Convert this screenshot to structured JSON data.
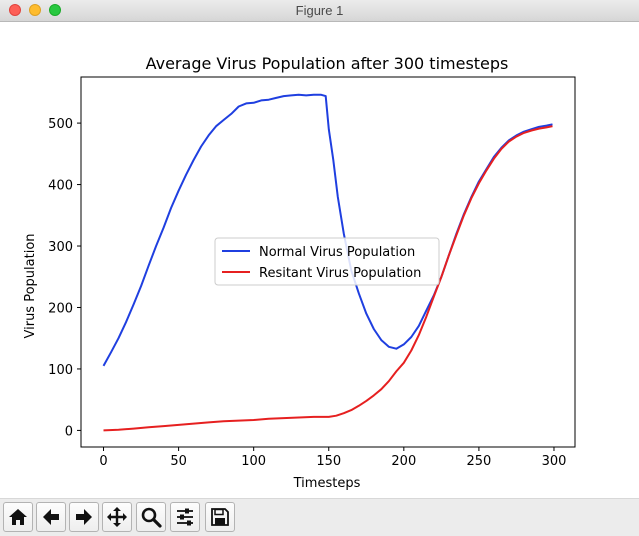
{
  "window": {
    "title": "Figure 1"
  },
  "toolbar": {
    "buttons": [
      {
        "icon": "home-icon"
      },
      {
        "icon": "back-arrow-icon"
      },
      {
        "icon": "forward-arrow-icon"
      },
      {
        "icon": "pan-move-icon"
      },
      {
        "icon": "zoom-magnifier-icon"
      },
      {
        "icon": "subplots-config-icon"
      },
      {
        "icon": "save-floppy-icon"
      }
    ]
  },
  "chart_data": {
    "type": "line",
    "title": "Average Virus Population after 300 timesteps",
    "xlabel": "Timesteps",
    "ylabel": "Virus Population",
    "xlim": [
      -15,
      314
    ],
    "ylim": [
      -27,
      575
    ],
    "xticks": [
      0,
      50,
      100,
      150,
      200,
      250,
      300
    ],
    "yticks": [
      0,
      100,
      200,
      300,
      400,
      500
    ],
    "grid": false,
    "legend": "center",
    "series": [
      {
        "name": "Normal Virus Population",
        "color": "#1f3fe0",
        "x": [
          0,
          5,
          10,
          15,
          20,
          25,
          30,
          35,
          40,
          45,
          50,
          55,
          60,
          65,
          70,
          75,
          80,
          85,
          90,
          95,
          100,
          105,
          110,
          115,
          120,
          125,
          130,
          135,
          140,
          145,
          148,
          150,
          153,
          156,
          160,
          165,
          170,
          175,
          180,
          185,
          190,
          195,
          200,
          205,
          210,
          215,
          220,
          225,
          230,
          235,
          240,
          245,
          250,
          255,
          260,
          265,
          270,
          275,
          280,
          285,
          290,
          295,
          299
        ],
        "y": [
          105,
          127,
          150,
          176,
          205,
          235,
          268,
          300,
          330,
          362,
          390,
          416,
          440,
          462,
          480,
          495,
          505,
          515,
          527,
          532,
          533,
          537,
          538,
          541,
          544,
          545,
          546,
          545,
          546,
          546,
          544,
          490,
          440,
          380,
          320,
          260,
          223,
          190,
          165,
          147,
          136,
          133,
          140,
          152,
          170,
          195,
          220,
          250,
          285,
          320,
          352,
          380,
          405,
          425,
          445,
          460,
          472,
          480,
          486,
          490,
          494,
          496,
          498
        ]
      },
      {
        "name": "Resitant Virus Population",
        "color": "#e62020",
        "x": [
          0,
          10,
          20,
          30,
          40,
          50,
          60,
          70,
          80,
          90,
          100,
          110,
          120,
          130,
          140,
          150,
          155,
          160,
          165,
          170,
          175,
          180,
          185,
          190,
          195,
          200,
          205,
          210,
          215,
          220,
          225,
          230,
          235,
          240,
          245,
          250,
          255,
          260,
          265,
          270,
          275,
          280,
          285,
          290,
          295,
          299
        ],
        "y": [
          0,
          1,
          3,
          5,
          7,
          9,
          11,
          13,
          15,
          16,
          17,
          19,
          20,
          21,
          22,
          22,
          24,
          28,
          33,
          40,
          48,
          57,
          67,
          80,
          96,
          110,
          130,
          155,
          185,
          218,
          250,
          285,
          318,
          350,
          378,
          402,
          423,
          442,
          458,
          470,
          478,
          484,
          488,
          491,
          493,
          495
        ]
      }
    ]
  }
}
